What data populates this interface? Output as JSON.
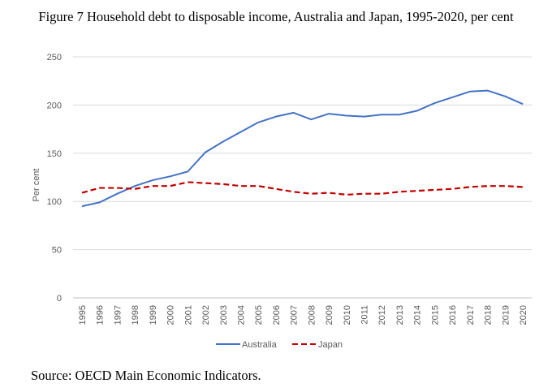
{
  "figure": {
    "title": "Figure 7 Household debt to disposable income, Australia and Japan, 1995-2020, per cent",
    "source": "Source: OECD Main Economic Indicators."
  },
  "chart_data": {
    "type": "line",
    "title": "",
    "xlabel": "",
    "ylabel": "Per cent",
    "ylim": [
      0,
      250
    ],
    "yticks": [
      0,
      50,
      100,
      150,
      200,
      250
    ],
    "grid": "horizontal",
    "legend_position": "bottom",
    "x": [
      "1995",
      "1996",
      "1997",
      "1998",
      "1999",
      "2000",
      "2001",
      "2002",
      "2003",
      "2004",
      "2005",
      "2006",
      "2007",
      "2008",
      "2009",
      "2010",
      "2011",
      "2012",
      "2013",
      "2014",
      "2015",
      "2016",
      "2017",
      "2018",
      "2019",
      "2020"
    ],
    "series": [
      {
        "name": "Australia",
        "color": "#4472C4",
        "style": "solid",
        "values": [
          95,
          99,
          108,
          116,
          122,
          126,
          131,
          151,
          162,
          172,
          182,
          188,
          192,
          185,
          191,
          189,
          188,
          190,
          190,
          194,
          202,
          208,
          214,
          215,
          209,
          201
        ]
      },
      {
        "name": "Japan",
        "color": "#C00000",
        "style": "dashed",
        "values": [
          109,
          114,
          114,
          113,
          116,
          116,
          120,
          119,
          118,
          116,
          116,
          113,
          110,
          108,
          109,
          107,
          108,
          108,
          110,
          111,
          112,
          113,
          115,
          116,
          116,
          115
        ]
      }
    ]
  }
}
